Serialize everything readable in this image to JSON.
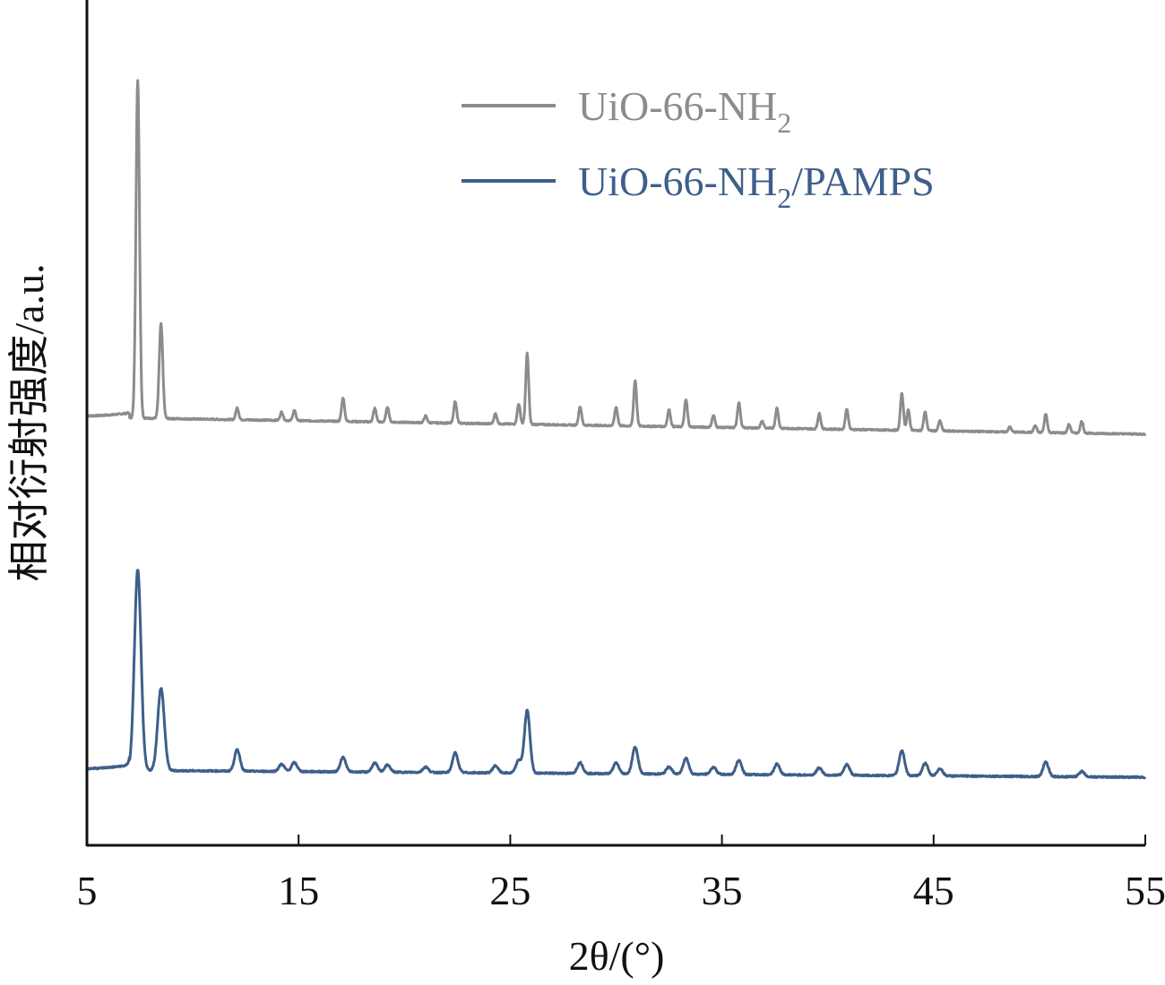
{
  "chart_data": {
    "type": "line",
    "xlabel": "2θ/(°)",
    "ylabel": "相对衍射强度/a.u.",
    "xlim": [
      5,
      55
    ],
    "xticks": [
      5,
      15,
      25,
      35,
      45,
      55
    ],
    "yticks": [],
    "grid": false,
    "legend_position": "top-right",
    "series": [
      {
        "name": "UiO-66-NH2",
        "color": "#8c8c8c",
        "baseline": 0.99,
        "baseline_slope": -0.01,
        "peaks": [
          {
            "x": 7.4,
            "y": 10.0
          },
          {
            "x": 8.5,
            "y": 2.8
          },
          {
            "x": 12.1,
            "y": 0.35
          },
          {
            "x": 14.2,
            "y": 0.25
          },
          {
            "x": 14.8,
            "y": 0.3
          },
          {
            "x": 17.1,
            "y": 0.7
          },
          {
            "x": 18.6,
            "y": 0.4
          },
          {
            "x": 19.2,
            "y": 0.45
          },
          {
            "x": 21.0,
            "y": 0.2
          },
          {
            "x": 22.4,
            "y": 0.65
          },
          {
            "x": 24.3,
            "y": 0.3
          },
          {
            "x": 25.4,
            "y": 0.6
          },
          {
            "x": 25.8,
            "y": 2.1
          },
          {
            "x": 28.3,
            "y": 0.55
          },
          {
            "x": 30.0,
            "y": 0.55
          },
          {
            "x": 30.9,
            "y": 1.35
          },
          {
            "x": 32.5,
            "y": 0.5
          },
          {
            "x": 33.3,
            "y": 0.8
          },
          {
            "x": 34.6,
            "y": 0.35
          },
          {
            "x": 35.8,
            "y": 0.75
          },
          {
            "x": 36.9,
            "y": 0.2
          },
          {
            "x": 37.6,
            "y": 0.6
          },
          {
            "x": 39.6,
            "y": 0.45
          },
          {
            "x": 40.9,
            "y": 0.6
          },
          {
            "x": 43.5,
            "y": 1.1
          },
          {
            "x": 43.8,
            "y": 0.6
          },
          {
            "x": 44.6,
            "y": 0.55
          },
          {
            "x": 45.3,
            "y": 0.3
          },
          {
            "x": 48.6,
            "y": 0.15
          },
          {
            "x": 49.8,
            "y": 0.2
          },
          {
            "x": 50.3,
            "y": 0.55
          },
          {
            "x": 51.4,
            "y": 0.25
          },
          {
            "x": 52.0,
            "y": 0.35
          }
        ]
      },
      {
        "name": "UiO-66-NH2/PAMPS",
        "color": "#3e5f8a",
        "baseline": 0.0,
        "baseline_slope": -0.004,
        "peaks": [
          {
            "x": 7.4,
            "y": 5.6
          },
          {
            "x": 8.5,
            "y": 2.3
          },
          {
            "x": 12.1,
            "y": 0.6
          },
          {
            "x": 14.2,
            "y": 0.2
          },
          {
            "x": 14.8,
            "y": 0.25
          },
          {
            "x": 17.1,
            "y": 0.4
          },
          {
            "x": 18.6,
            "y": 0.25
          },
          {
            "x": 19.2,
            "y": 0.2
          },
          {
            "x": 21.0,
            "y": 0.15
          },
          {
            "x": 22.4,
            "y": 0.55
          },
          {
            "x": 24.3,
            "y": 0.2
          },
          {
            "x": 25.4,
            "y": 0.35
          },
          {
            "x": 25.8,
            "y": 1.75
          },
          {
            "x": 28.3,
            "y": 0.3
          },
          {
            "x": 30.0,
            "y": 0.3
          },
          {
            "x": 30.9,
            "y": 0.75
          },
          {
            "x": 32.5,
            "y": 0.2
          },
          {
            "x": 33.3,
            "y": 0.45
          },
          {
            "x": 34.6,
            "y": 0.2
          },
          {
            "x": 35.8,
            "y": 0.4
          },
          {
            "x": 37.6,
            "y": 0.3
          },
          {
            "x": 39.6,
            "y": 0.2
          },
          {
            "x": 40.9,
            "y": 0.3
          },
          {
            "x": 43.5,
            "y": 0.7
          },
          {
            "x": 44.6,
            "y": 0.35
          },
          {
            "x": 45.3,
            "y": 0.2
          },
          {
            "x": 50.3,
            "y": 0.4
          },
          {
            "x": 52.0,
            "y": 0.15
          }
        ]
      }
    ]
  },
  "legend": {
    "items": [
      {
        "main": "UiO-66-NH",
        "sub": "2",
        "suffix": "",
        "color": "#8c8c8c"
      },
      {
        "main": "UiO-66-NH",
        "sub": "2",
        "suffix": "/PAMPS",
        "color": "#3e5f8a"
      }
    ]
  }
}
